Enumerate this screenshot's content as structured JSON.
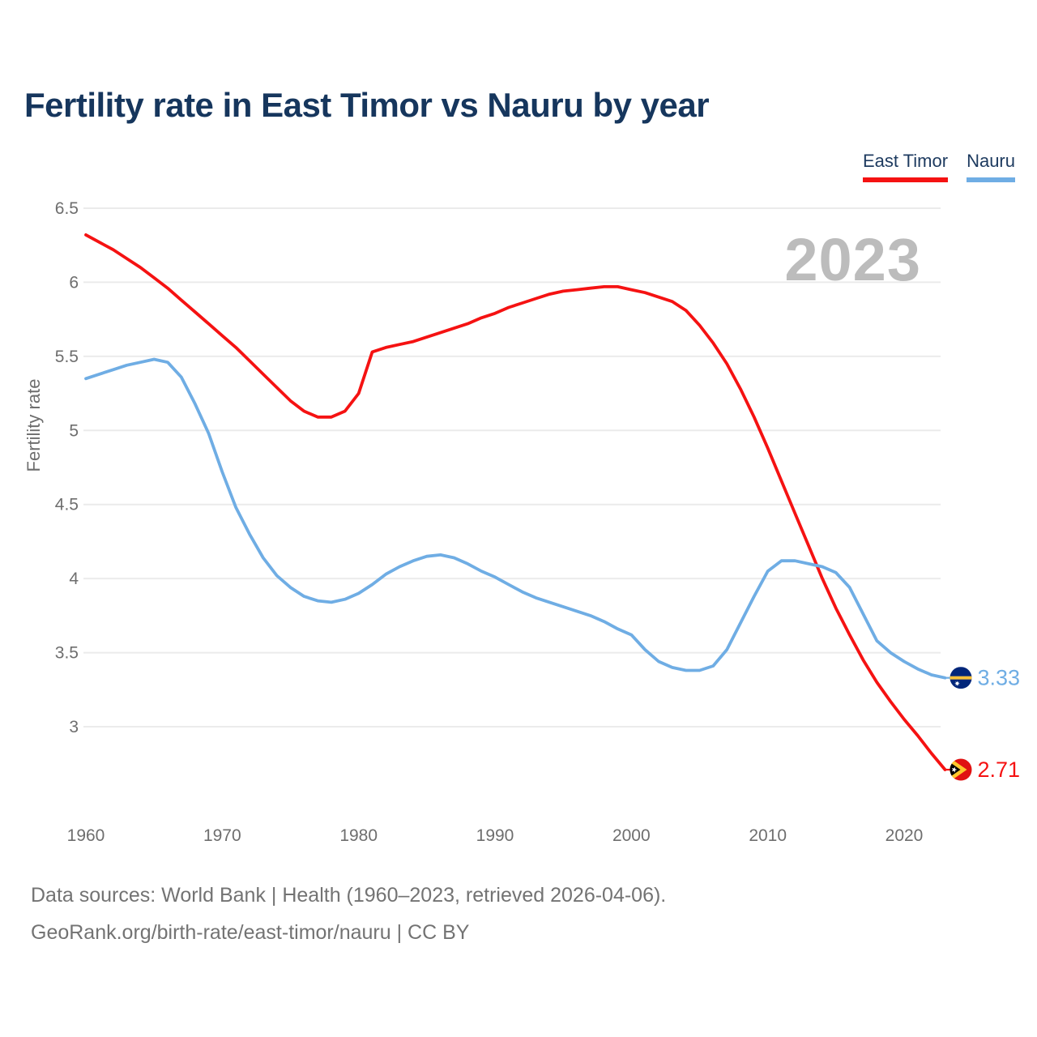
{
  "header": {
    "title": "Fertility rate in East Timor vs Nauru by year"
  },
  "legend": {
    "items": [
      {
        "label": "East Timor",
        "color": "#f51212"
      },
      {
        "label": "Nauru",
        "color": "#6fade4"
      }
    ]
  },
  "watermark": "2023",
  "footer": {
    "line1": "Data sources: World Bank | Health (1960–2023, retrieved 2026-04-06).",
    "line2": "GeoRank.org/birth-rate/east-timor/nauru | CC BY"
  },
  "chart_data": {
    "type": "line",
    "title": "Fertility rate in East Timor vs Nauru by year",
    "xlabel": "",
    "ylabel": "Fertility rate",
    "grid": "horizontal",
    "legend_position": "top-right",
    "ylim": [
      2.6,
      6.6
    ],
    "yticks": [
      3,
      3.5,
      4,
      4.5,
      5,
      5.5,
      6,
      6.5
    ],
    "xticks": [
      1960,
      1970,
      1980,
      1990,
      2000,
      2010,
      2020
    ],
    "x": [
      1960,
      1961,
      1962,
      1963,
      1964,
      1965,
      1966,
      1967,
      1968,
      1969,
      1970,
      1971,
      1972,
      1973,
      1974,
      1975,
      1976,
      1977,
      1978,
      1979,
      1980,
      1981,
      1982,
      1983,
      1984,
      1985,
      1986,
      1987,
      1988,
      1989,
      1990,
      1991,
      1992,
      1993,
      1994,
      1995,
      1996,
      1997,
      1998,
      1999,
      2000,
      2001,
      2002,
      2003,
      2004,
      2005,
      2006,
      2007,
      2008,
      2009,
      2010,
      2011,
      2012,
      2013,
      2014,
      2015,
      2016,
      2017,
      2018,
      2019,
      2020,
      2021,
      2022,
      2023
    ],
    "series": [
      {
        "name": "East Timor",
        "color": "#f51212",
        "end_label": "2.71",
        "end_value": 2.71,
        "flag": "east-timor",
        "values": [
          6.32,
          6.27,
          6.22,
          6.16,
          6.1,
          6.03,
          5.96,
          5.88,
          5.8,
          5.72,
          5.64,
          5.56,
          5.47,
          5.38,
          5.29,
          5.2,
          5.13,
          5.09,
          5.09,
          5.13,
          5.25,
          5.53,
          5.56,
          5.58,
          5.6,
          5.63,
          5.66,
          5.69,
          5.72,
          5.76,
          5.79,
          5.83,
          5.86,
          5.89,
          5.92,
          5.94,
          5.95,
          5.96,
          5.97,
          5.97,
          5.95,
          5.93,
          5.9,
          5.87,
          5.81,
          5.71,
          5.59,
          5.45,
          5.28,
          5.09,
          4.88,
          4.66,
          4.44,
          4.22,
          4.0,
          3.8,
          3.62,
          3.45,
          3.3,
          3.17,
          3.05,
          2.94,
          2.82,
          2.71
        ]
      },
      {
        "name": "Nauru",
        "color": "#6fade4",
        "end_label": "3.33",
        "end_value": 3.33,
        "flag": "nauru",
        "values": [
          5.35,
          5.38,
          5.41,
          5.44,
          5.46,
          5.48,
          5.46,
          5.36,
          5.18,
          4.98,
          4.72,
          4.48,
          4.3,
          4.14,
          4.02,
          3.94,
          3.88,
          3.85,
          3.84,
          3.86,
          3.9,
          3.96,
          4.03,
          4.08,
          4.12,
          4.15,
          4.16,
          4.14,
          4.1,
          4.05,
          4.01,
          3.96,
          3.91,
          3.87,
          3.84,
          3.81,
          3.78,
          3.75,
          3.71,
          3.66,
          3.62,
          3.52,
          3.44,
          3.4,
          3.38,
          3.38,
          3.41,
          3.52,
          3.7,
          3.88,
          4.05,
          4.12,
          4.12,
          4.1,
          4.08,
          4.04,
          3.94,
          3.76,
          3.58,
          3.5,
          3.44,
          3.39,
          3.35,
          3.33
        ]
      }
    ]
  }
}
